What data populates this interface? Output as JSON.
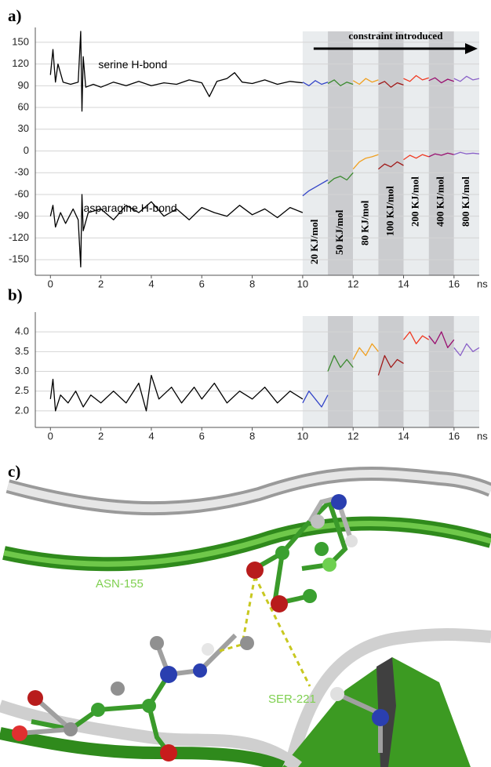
{
  "chart_data": [
    {
      "type": "line",
      "panel_label": "a)",
      "xlabel": "ns",
      "xlim": [
        -0.6,
        17
      ],
      "xticks": [
        0,
        2,
        4,
        6,
        8,
        10,
        12,
        14,
        16
      ],
      "ylim": [
        -165,
        165
      ],
      "yticks": [
        -150,
        -120,
        -90,
        -60,
        -30,
        0,
        30,
        60,
        90,
        120,
        150
      ],
      "grid": true,
      "annotation": "constraint introduced",
      "region_colors": [
        "#e9ecee",
        "#cbcccf"
      ],
      "regions": [
        {
          "x": [
            10,
            11
          ],
          "label": "20 KJ/mol"
        },
        {
          "x": [
            11,
            12
          ],
          "label": "50 KJ/mol"
        },
        {
          "x": [
            12,
            13
          ],
          "label": "80 KJ/mol"
        },
        {
          "x": [
            13,
            14
          ],
          "label": "100 KJ/mol"
        },
        {
          "x": [
            14,
            15
          ],
          "label": "200 KJ/mol"
        },
        {
          "x": [
            15,
            16
          ],
          "label": "400 KJ/mol"
        },
        {
          "x": [
            16,
            17
          ],
          "label": "800 KJ/mol"
        }
      ],
      "series": [
        {
          "name": "serine H-bond",
          "color": "#000000",
          "x": [
            0,
            0.1,
            0.2,
            0.3,
            0.5,
            0.8,
            1.1,
            1.2,
            1.25,
            1.3,
            1.4,
            1.7,
            2,
            2.5,
            3,
            3.5,
            4,
            4.5,
            5,
            5.5,
            6,
            6.3,
            6.6,
            7,
            7.3,
            7.6,
            8,
            8.5,
            9,
            9.5,
            10
          ],
          "values": [
            105,
            140,
            95,
            120,
            95,
            92,
            95,
            165,
            55,
            130,
            88,
            92,
            88,
            95,
            90,
            96,
            90,
            94,
            92,
            98,
            94,
            75,
            96,
            100,
            108,
            95,
            93,
            98,
            92,
            96,
            94
          ]
        },
        {
          "name": "asparagine H-bond",
          "color": "#000000",
          "x": [
            0,
            0.1,
            0.2,
            0.4,
            0.6,
            0.9,
            1.1,
            1.2,
            1.25,
            1.3,
            1.5,
            2,
            2.5,
            3,
            3.5,
            4,
            4.5,
            5,
            5.5,
            6,
            6.5,
            7,
            7.5,
            8,
            8.5,
            9,
            9.5,
            10
          ],
          "values": [
            -90,
            -75,
            -105,
            -85,
            -100,
            -80,
            -95,
            -160,
            -60,
            -110,
            -85,
            -80,
            -95,
            -75,
            -85,
            -70,
            -90,
            -80,
            -95,
            -78,
            -85,
            -90,
            -75,
            -88,
            -80,
            -92,
            -78,
            -85
          ]
        },
        {
          "color": "#3344c8",
          "x": [
            10,
            10.25,
            10.5,
            10.75,
            11
          ],
          "values": [
            95,
            90,
            97,
            92,
            95
          ]
        },
        {
          "color": "#3a8a2e",
          "x": [
            11,
            11.25,
            11.5,
            11.75,
            12
          ],
          "values": [
            93,
            98,
            90,
            95,
            92
          ]
        },
        {
          "color": "#f0a020",
          "x": [
            12,
            12.25,
            12.5,
            12.75,
            13
          ],
          "values": [
            97,
            92,
            100,
            95,
            98
          ]
        },
        {
          "color": "#a01818",
          "x": [
            13,
            13.25,
            13.5,
            13.75,
            14
          ],
          "values": [
            92,
            96,
            88,
            94,
            91
          ]
        },
        {
          "color": "#f03a22",
          "x": [
            14,
            14.25,
            14.5,
            14.75,
            15
          ],
          "values": [
            100,
            96,
            104,
            98,
            101
          ]
        },
        {
          "color": "#9a1070",
          "x": [
            15,
            15.25,
            15.5,
            15.75,
            16
          ],
          "values": [
            97,
            101,
            94,
            99,
            96
          ]
        },
        {
          "color": "#8a62c8",
          "x": [
            16,
            16.25,
            16.5,
            16.75,
            17
          ],
          "values": [
            100,
            96,
            103,
            98,
            100
          ]
        },
        {
          "color": "#3344c8",
          "x": [
            10,
            10.25,
            10.5,
            10.75,
            11
          ],
          "values": [
            -62,
            -55,
            -50,
            -45,
            -40
          ]
        },
        {
          "color": "#3a8a2e",
          "x": [
            11,
            11.25,
            11.5,
            11.75,
            12
          ],
          "values": [
            -45,
            -38,
            -35,
            -40,
            -30
          ]
        },
        {
          "color": "#f0a020",
          "x": [
            12,
            12.25,
            12.5,
            12.75,
            13
          ],
          "values": [
            -25,
            -15,
            -10,
            -8,
            -5
          ]
        },
        {
          "color": "#a01818",
          "x": [
            13,
            13.25,
            13.5,
            13.75,
            14
          ],
          "values": [
            -25,
            -18,
            -22,
            -15,
            -20
          ]
        },
        {
          "color": "#f03a22",
          "x": [
            14,
            14.25,
            14.5,
            14.75,
            15
          ],
          "values": [
            -12,
            -6,
            -10,
            -5,
            -8
          ]
        },
        {
          "color": "#9a1070",
          "x": [
            15,
            15.25,
            15.5,
            15.75,
            16
          ],
          "values": [
            -8,
            -4,
            -6,
            -3,
            -5
          ]
        },
        {
          "color": "#8a62c8",
          "x": [
            16,
            16.25,
            16.5,
            16.75,
            17
          ],
          "values": [
            -5,
            -2,
            -4,
            -3,
            -4
          ]
        }
      ]
    },
    {
      "type": "line",
      "panel_label": "b)",
      "xlabel": "ns",
      "xlim": [
        -0.6,
        17
      ],
      "xticks": [
        0,
        2,
        4,
        6,
        8,
        10,
        12,
        14,
        16
      ],
      "ylim": [
        1.7,
        4.4
      ],
      "yticks": [
        {
          "value": 2,
          "label": "2.0"
        },
        2.5,
        {
          "value": 3,
          "label": "3.0"
        },
        3.5,
        {
          "value": 4,
          "label": "4.0"
        }
      ],
      "grid": true,
      "region_colors": [
        "#e9ecee",
        "#cbcccf"
      ],
      "regions": [
        {
          "x": [
            10,
            11
          ]
        },
        {
          "x": [
            11,
            12
          ]
        },
        {
          "x": [
            12,
            13
          ]
        },
        {
          "x": [
            13,
            14
          ]
        },
        {
          "x": [
            14,
            15
          ]
        },
        {
          "x": [
            15,
            16
          ]
        },
        {
          "x": [
            16,
            17
          ]
        }
      ],
      "series": [
        {
          "color": "#000000",
          "x": [
            0,
            0.1,
            0.2,
            0.4,
            0.7,
            1,
            1.3,
            1.6,
            2,
            2.5,
            3,
            3.5,
            3.8,
            4,
            4.3,
            4.8,
            5.2,
            5.7,
            6,
            6.5,
            7,
            7.5,
            8,
            8.5,
            9,
            9.5,
            10
          ],
          "values": [
            2.3,
            2.8,
            2.0,
            2.4,
            2.2,
            2.5,
            2.1,
            2.4,
            2.2,
            2.5,
            2.2,
            2.7,
            2.0,
            2.9,
            2.3,
            2.6,
            2.2,
            2.6,
            2.3,
            2.7,
            2.2,
            2.5,
            2.3,
            2.6,
            2.2,
            2.5,
            2.3
          ]
        },
        {
          "color": "#3344c8",
          "x": [
            10,
            10.25,
            10.5,
            10.75,
            11
          ],
          "values": [
            2.2,
            2.5,
            2.3,
            2.1,
            2.4
          ]
        },
        {
          "color": "#3a8a2e",
          "x": [
            11,
            11.25,
            11.5,
            11.75,
            12
          ],
          "values": [
            3.0,
            3.4,
            3.1,
            3.3,
            3.1
          ]
        },
        {
          "color": "#f0a020",
          "x": [
            12,
            12.25,
            12.5,
            12.75,
            13
          ],
          "values": [
            3.3,
            3.6,
            3.4,
            3.7,
            3.5
          ]
        },
        {
          "color": "#a01818",
          "x": [
            13,
            13.25,
            13.5,
            13.75,
            14
          ],
          "values": [
            2.9,
            3.4,
            3.1,
            3.3,
            3.2
          ]
        },
        {
          "color": "#f03a22",
          "x": [
            14,
            14.25,
            14.5,
            14.75,
            15
          ],
          "values": [
            3.8,
            4.0,
            3.7,
            3.9,
            3.8
          ]
        },
        {
          "color": "#9a1070",
          "x": [
            15,
            15.25,
            15.5,
            15.75,
            16
          ],
          "values": [
            3.9,
            3.7,
            4.0,
            3.6,
            3.8
          ]
        },
        {
          "color": "#8a62c8",
          "x": [
            16,
            16.25,
            16.5,
            16.75,
            17
          ],
          "values": [
            3.6,
            3.4,
            3.7,
            3.5,
            3.6
          ]
        }
      ]
    }
  ],
  "structure_panel": {
    "panel_label": "c)",
    "residues": [
      "ASN-155",
      "SER-221"
    ]
  }
}
